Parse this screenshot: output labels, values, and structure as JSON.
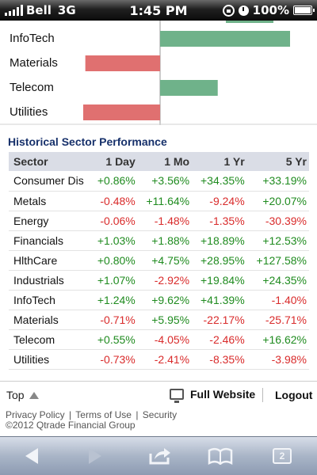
{
  "status_bar": {
    "carrier": "Bell",
    "network": "3G",
    "time": "1:45 PM",
    "battery": "100%",
    "icons": [
      "signal-icon",
      "orientation-lock-icon",
      "alarm-clock-icon",
      "battery-icon"
    ]
  },
  "chart_data": {
    "type": "bar",
    "orientation": "horizontal",
    "categories": [
      "InfoTech",
      "Materials",
      "Telecom",
      "Utilities"
    ],
    "values": [
      1.24,
      -0.71,
      0.55,
      -0.73
    ],
    "zero_line": true,
    "colors": {
      "positive": "#6fb28a",
      "negative": "#e07070"
    }
  },
  "section_title": "Historical Sector Performance",
  "table": {
    "headers": [
      "Sector",
      "1 Day",
      "1 Mo",
      "1 Yr",
      "5 Yr"
    ],
    "rows": [
      [
        "Consumer Dis",
        "+0.86%",
        "+3.56%",
        "+34.35%",
        "+33.19%"
      ],
      [
        "Metals",
        "-0.48%",
        "+11.64%",
        "-9.24%",
        "+20.07%"
      ],
      [
        "Energy",
        "-0.06%",
        "-1.48%",
        "-1.35%",
        "-30.39%"
      ],
      [
        "Financials",
        "+1.03%",
        "+1.88%",
        "+18.89%",
        "+12.53%"
      ],
      [
        "HlthCare",
        "+0.80%",
        "+4.75%",
        "+28.95%",
        "+127.58%"
      ],
      [
        "Industrials",
        "+1.07%",
        "-2.92%",
        "+19.84%",
        "+24.35%"
      ],
      [
        "InfoTech",
        "+1.24%",
        "+9.62%",
        "+41.39%",
        "-1.40%"
      ],
      [
        "Materials",
        "-0.71%",
        "+5.95%",
        "-22.17%",
        "-25.71%"
      ],
      [
        "Telecom",
        "+0.55%",
        "-4.05%",
        "-2.46%",
        "+16.62%"
      ],
      [
        "Utilities",
        "-0.73%",
        "-2.41%",
        "-8.35%",
        "-3.98%"
      ]
    ]
  },
  "footer": {
    "top_label": "Top",
    "full_website": "Full Website",
    "logout": "Logout",
    "privacy": "Privacy Policy",
    "terms": "Terms of Use",
    "security": "Security",
    "separator": "|",
    "copyright": "©2012 Qtrade Financial Group"
  },
  "toolbar": {
    "tab_count": "2",
    "icons": [
      "back-icon",
      "forward-icon",
      "share-icon",
      "bookmarks-icon",
      "tabs-icon"
    ]
  }
}
